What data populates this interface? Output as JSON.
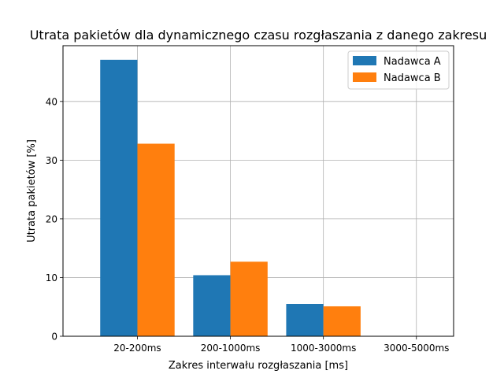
{
  "chart_data": {
    "type": "bar",
    "title": "Utrata pakietów dla dynamicznego czasu rozgłaszania z danego zakresu",
    "xlabel": "Zakres interwału rozgłaszania [ms]",
    "ylabel": "Utrata pakietów [%]",
    "categories": [
      "20-200ms",
      "200-1000ms",
      "1000-3000ms",
      "3000-5000ms"
    ],
    "series": [
      {
        "name": "Nadawca A",
        "color": "#1f77b4",
        "values": [
          47.1,
          10.4,
          5.5,
          0
        ]
      },
      {
        "name": "Nadawca B",
        "color": "#ff7f0e",
        "values": [
          32.8,
          12.7,
          5.1,
          0
        ]
      }
    ],
    "ylim": [
      0,
      49.5
    ],
    "yticks": [
      0,
      10,
      20,
      30,
      40
    ],
    "grid": true,
    "legend": "top-right"
  }
}
